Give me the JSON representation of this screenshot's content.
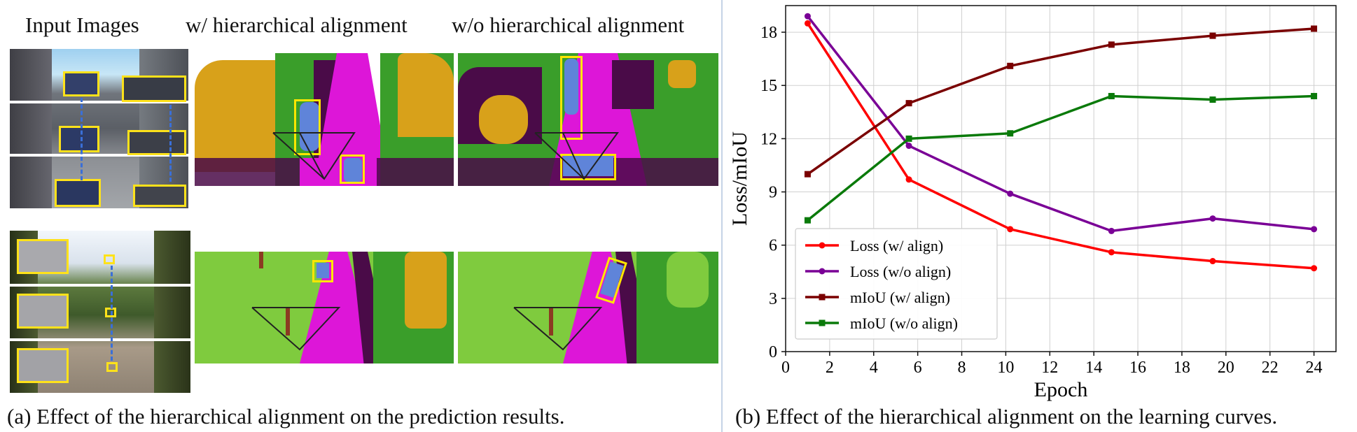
{
  "panel_a": {
    "headings": {
      "input": "Input Images",
      "with_align": "w/ hierarchical alignment",
      "without_align": "w/o hierarchical alignment"
    },
    "caption": "(a) Effect of the hierarchical alignment on the prediction results.",
    "colors": {
      "road": "#dd16d8",
      "sidewalk": "#4a0b48",
      "vegetation": "#3a9e2a",
      "terrain": "#7fcb3e",
      "building": "#d8a11a",
      "car": "#5f84d9",
      "trunk": "#8b3a22",
      "highlight": "#ffe600"
    }
  },
  "panel_b": {
    "caption": "(b) Effect of the hierarchical alignment on the learning curves."
  },
  "chart_data": {
    "type": "line",
    "xlabel": "Epoch",
    "ylabel": "Loss/mIoU",
    "xlim": [
      0,
      25
    ],
    "ylim": [
      0,
      19.5
    ],
    "xticks": [
      "0",
      "2",
      "4",
      "6",
      "8",
      "10",
      "12",
      "14",
      "16",
      "18",
      "20",
      "22",
      "24"
    ],
    "yticks": [
      "0",
      "3",
      "6",
      "9",
      "12",
      "15",
      "18"
    ],
    "grid": true,
    "legend_position": "lower-left",
    "series": [
      {
        "name": "Loss (w/ align)",
        "color": "#ff0000",
        "marker": "circle",
        "x": [
          1,
          5.6,
          10.2,
          14.8,
          19.4,
          24
        ],
        "y": [
          18.5,
          9.7,
          6.9,
          5.6,
          5.1,
          4.7
        ]
      },
      {
        "name": "Loss (w/o align)",
        "color": "#7a0096",
        "marker": "circle",
        "x": [
          1,
          5.6,
          10.2,
          14.8,
          19.4,
          24
        ],
        "y": [
          18.9,
          11.6,
          8.9,
          6.8,
          7.5,
          6.9
        ]
      },
      {
        "name": "mIoU (w/ align)",
        "color": "#7a0000",
        "marker": "square",
        "x": [
          1,
          5.6,
          10.2,
          14.8,
          19.4,
          24
        ],
        "y": [
          10.0,
          14.0,
          16.1,
          17.3,
          17.8,
          18.2
        ]
      },
      {
        "name": "mIoU (w/o align)",
        "color": "#0a7a0a",
        "marker": "square",
        "x": [
          1,
          5.6,
          10.2,
          14.8,
          19.4,
          24
        ],
        "y": [
          7.4,
          12.0,
          12.3,
          14.4,
          14.2,
          14.4
        ]
      }
    ]
  }
}
